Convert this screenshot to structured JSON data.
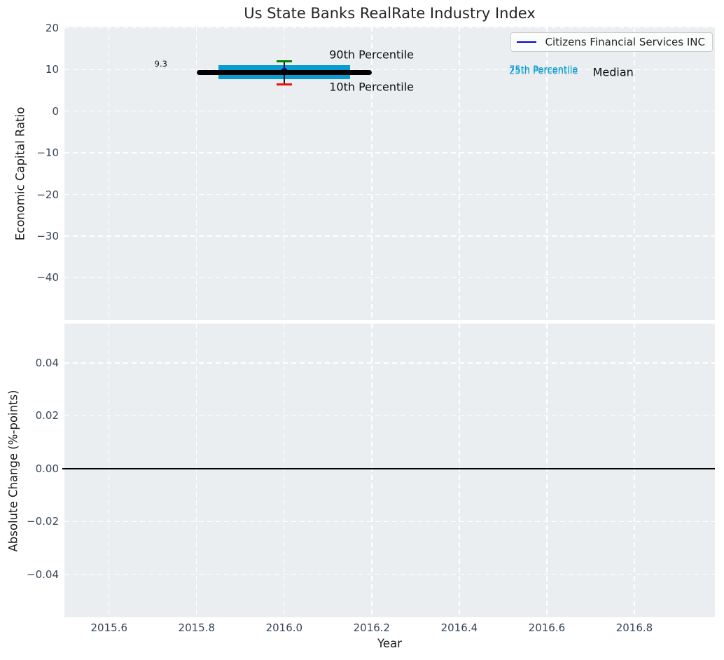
{
  "colors": {
    "figure_bg": "#ffffff",
    "axes_bg": "#ebeef0",
    "grid": "#ffffff",
    "tick_text": "#36455a",
    "label_text": "#1a1a1a",
    "title_text": "#262626",
    "band_cyan": "#0a9bd1",
    "cap_green": "#008000",
    "cap_red": "#ea1010",
    "company_blue": "#0000cd",
    "median_black": "#000000"
  },
  "chart_data": [
    {
      "id": "economic-capital-ratio-panel",
      "type": "line",
      "title": "Us State Banks RealRate Industry Index",
      "ylabel": "Economic Capital Ratio",
      "xlabel": "",
      "xlim": [
        2015.498,
        2016.984
      ],
      "ylim": [
        -50.2,
        20.3
      ],
      "grid": true,
      "xticks": [
        {
          "v": 2015.6,
          "label": "2015.6"
        },
        {
          "v": 2015.8,
          "label": "2015.8"
        },
        {
          "v": 2016.0,
          "label": "2016.0"
        },
        {
          "v": 2016.2,
          "label": "2016.2"
        },
        {
          "v": 2016.4,
          "label": "2016.4"
        },
        {
          "v": 2016.6,
          "label": "2016.6"
        },
        {
          "v": 2016.8,
          "label": "2016.8"
        }
      ],
      "yticks": [
        {
          "v": 20,
          "label": "20"
        },
        {
          "v": 10,
          "label": "10"
        },
        {
          "v": 0,
          "label": "0"
        },
        {
          "v": -10,
          "label": "−10"
        },
        {
          "v": -20,
          "label": "−20"
        },
        {
          "v": -30,
          "label": "−30"
        },
        {
          "v": -40,
          "label": "−40"
        }
      ],
      "legend": {
        "position": "upper right",
        "entries": [
          {
            "label": "Citizens Financial Services INC",
            "color": "#0000cd"
          }
        ]
      },
      "industry_percentiles": {
        "year": 2016.0,
        "p90": 12.0,
        "p75": 9.5,
        "median": 9.3,
        "p25": 9.2,
        "p10": 6.4,
        "median_line_span": [
          2015.8,
          2016.2
        ],
        "iqr_band_span": [
          2015.85,
          2016.15
        ]
      },
      "company_series": {
        "name": "Citizens Financial Services INC",
        "x": [
          2016.0
        ],
        "y": [
          9.6
        ]
      },
      "annotations": [
        {
          "text": "9.3",
          "x": 2015.733,
          "y": 11.4,
          "ha": "right",
          "size": 11.5,
          "color": "#111111"
        },
        {
          "text": "90th Percentile",
          "x": 2016.103,
          "y": 13.6,
          "ha": "left",
          "size": 16,
          "color": "#0a0a0a"
        },
        {
          "text": "10th Percentile",
          "x": 2016.103,
          "y": 5.8,
          "ha": "left",
          "size": 16,
          "color": "#0a0a0a"
        },
        {
          "text": "75th Percentile",
          "x": 2016.514,
          "y": 9.8,
          "ha": "left",
          "size": 13,
          "color": "#0a9bd1"
        },
        {
          "text": "25th Percentile",
          "x": 2016.514,
          "y": 9.45,
          "ha": "left",
          "size": 13,
          "color": "#0a9bd1"
        },
        {
          "text": "Median",
          "x": 2016.705,
          "y": 9.35,
          "ha": "left",
          "size": 16,
          "color": "#0a0a0a"
        }
      ]
    },
    {
      "id": "absolute-change-panel",
      "type": "line",
      "title": "",
      "ylabel": "Absolute Change (%-points)",
      "xlabel": "Year",
      "xlim": [
        2015.498,
        2016.984
      ],
      "ylim": [
        -0.0562,
        0.0548
      ],
      "grid": true,
      "xticks": [
        {
          "v": 2015.6,
          "label": "2015.6"
        },
        {
          "v": 2015.8,
          "label": "2015.8"
        },
        {
          "v": 2016.0,
          "label": "2016.0"
        },
        {
          "v": 2016.2,
          "label": "2016.2"
        },
        {
          "v": 2016.4,
          "label": "2016.4"
        },
        {
          "v": 2016.6,
          "label": "2016.6"
        },
        {
          "v": 2016.8,
          "label": "2016.8"
        }
      ],
      "yticks": [
        {
          "v": 0.04,
          "label": "0.04"
        },
        {
          "v": 0.02,
          "label": "0.02"
        },
        {
          "v": 0.0,
          "label": "0.00"
        },
        {
          "v": -0.02,
          "label": "−0.02"
        },
        {
          "v": -0.04,
          "label": "−0.04"
        }
      ],
      "zero_line": 0.0
    }
  ]
}
